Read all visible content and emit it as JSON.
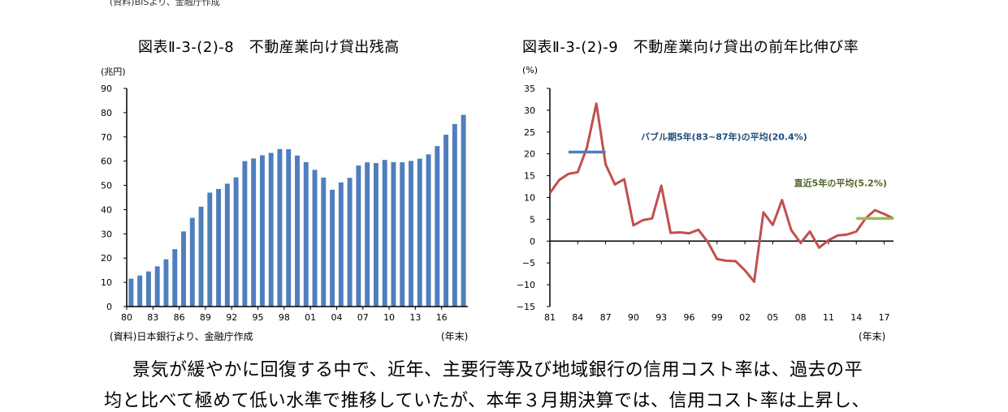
{
  "top_source": "(資料)BISより、金融庁作成",
  "chart_data": [
    {
      "type": "bar",
      "title": "図表Ⅱ-3-(2)-8　不動産業向け貸出残高",
      "ylabel": "(兆円)",
      "xlabel": "(年末)",
      "source": "(資料)日本銀行より、金融庁作成",
      "ylim": [
        0,
        90
      ],
      "yticks": [
        "0",
        "10",
        "20",
        "30",
        "40",
        "50",
        "60",
        "70",
        "80",
        "90"
      ],
      "xtick_labels": [
        "80",
        "83",
        "86",
        "89",
        "92",
        "95",
        "98",
        "01",
        "04",
        "07",
        "10",
        "13",
        "16"
      ],
      "categories": [
        "80",
        "81",
        "82",
        "83",
        "84",
        "85",
        "86",
        "87",
        "88",
        "89",
        "90",
        "91",
        "92",
        "93",
        "94",
        "95",
        "96",
        "97",
        "98",
        "99",
        "00",
        "01",
        "02",
        "03",
        "04",
        "05",
        "06",
        "07",
        "08",
        "09",
        "10",
        "11",
        "12",
        "13",
        "14",
        "15",
        "16",
        "17",
        "18"
      ],
      "values": [
        11.5,
        12.8,
        14.5,
        16.6,
        19.5,
        23.7,
        31.0,
        36.6,
        41.2,
        47.0,
        48.5,
        50.7,
        53.3,
        60.0,
        61.1,
        62.4,
        63.4,
        65.0,
        64.9,
        62.3,
        59.6,
        56.4,
        53.2,
        48.2,
        51.2,
        53.1,
        58.2,
        59.5,
        59.2,
        60.5,
        59.6,
        59.5,
        60.1,
        61.0,
        62.8,
        66.2,
        70.9,
        75.3,
        79.1
      ],
      "grid": false,
      "colors": {
        "bar": "#4f7ebd",
        "axis": "#000000"
      }
    },
    {
      "type": "line",
      "title": "図表Ⅱ-3-(2)-9　不動産業向け貸出の前年比伸び率",
      "ylabel": "(%)",
      "xlabel": "(年末)",
      "ylim": [
        -15,
        35
      ],
      "yticks": [
        "35",
        "30",
        "25",
        "20",
        "15",
        "10",
        "5",
        "0",
        "−5",
        "−10",
        "−15"
      ],
      "xtick_labels": [
        "81",
        "84",
        "87",
        "90",
        "93",
        "96",
        "99",
        "02",
        "05",
        "08",
        "11",
        "14",
        "17"
      ],
      "x": [
        1981,
        1982,
        1983,
        1984,
        1985,
        1986,
        1987,
        1988,
        1989,
        1990,
        1991,
        1992,
        1993,
        1994,
        1995,
        1996,
        1997,
        1998,
        1999,
        2000,
        2001,
        2002,
        2003,
        2004,
        2005,
        2006,
        2007,
        2008,
        2009,
        2010,
        2011,
        2012,
        2013,
        2014,
        2015,
        2016,
        2017,
        2018
      ],
      "series": [
        {
          "values": [
            11.0,
            14.0,
            15.4,
            15.8,
            21.5,
            31.5,
            17.6,
            13.0,
            14.2,
            3.6,
            4.8,
            5.2,
            12.7,
            1.9,
            2.0,
            1.8,
            2.6,
            -0.2,
            -4.1,
            -4.5,
            -4.6,
            -6.7,
            -9.3,
            6.6,
            3.7,
            9.4,
            2.5,
            -0.4,
            2.2,
            -1.5,
            0.2,
            1.3,
            1.5,
            2.2,
            5.2,
            7.1,
            6.2,
            5.2
          ],
          "color": "#c0504d"
        }
      ],
      "annotations": [
        {
          "text": "バブル期5年(83~87年)の平均(20.4%)",
          "value": 20.4,
          "x_range": [
            1983,
            1987
          ],
          "color": "#4f7ebd",
          "text_color": "#1f4e79"
        },
        {
          "text": "直近5年の平均(5.2%)",
          "value": 5.2,
          "x_range": [
            2014,
            2018
          ],
          "color": "#9bbb59",
          "text_color": "#4f6228"
        }
      ],
      "grid": false
    }
  ],
  "body_text": {
    "line1": "景気が緩やかに回復する中で、近年、主要行等及び地域銀行の信用コスト率は、過去の平",
    "line2": "均と比べて極めて低い水準で推移していたが、本年３月期決算では、信用コスト率は上昇し、"
  }
}
